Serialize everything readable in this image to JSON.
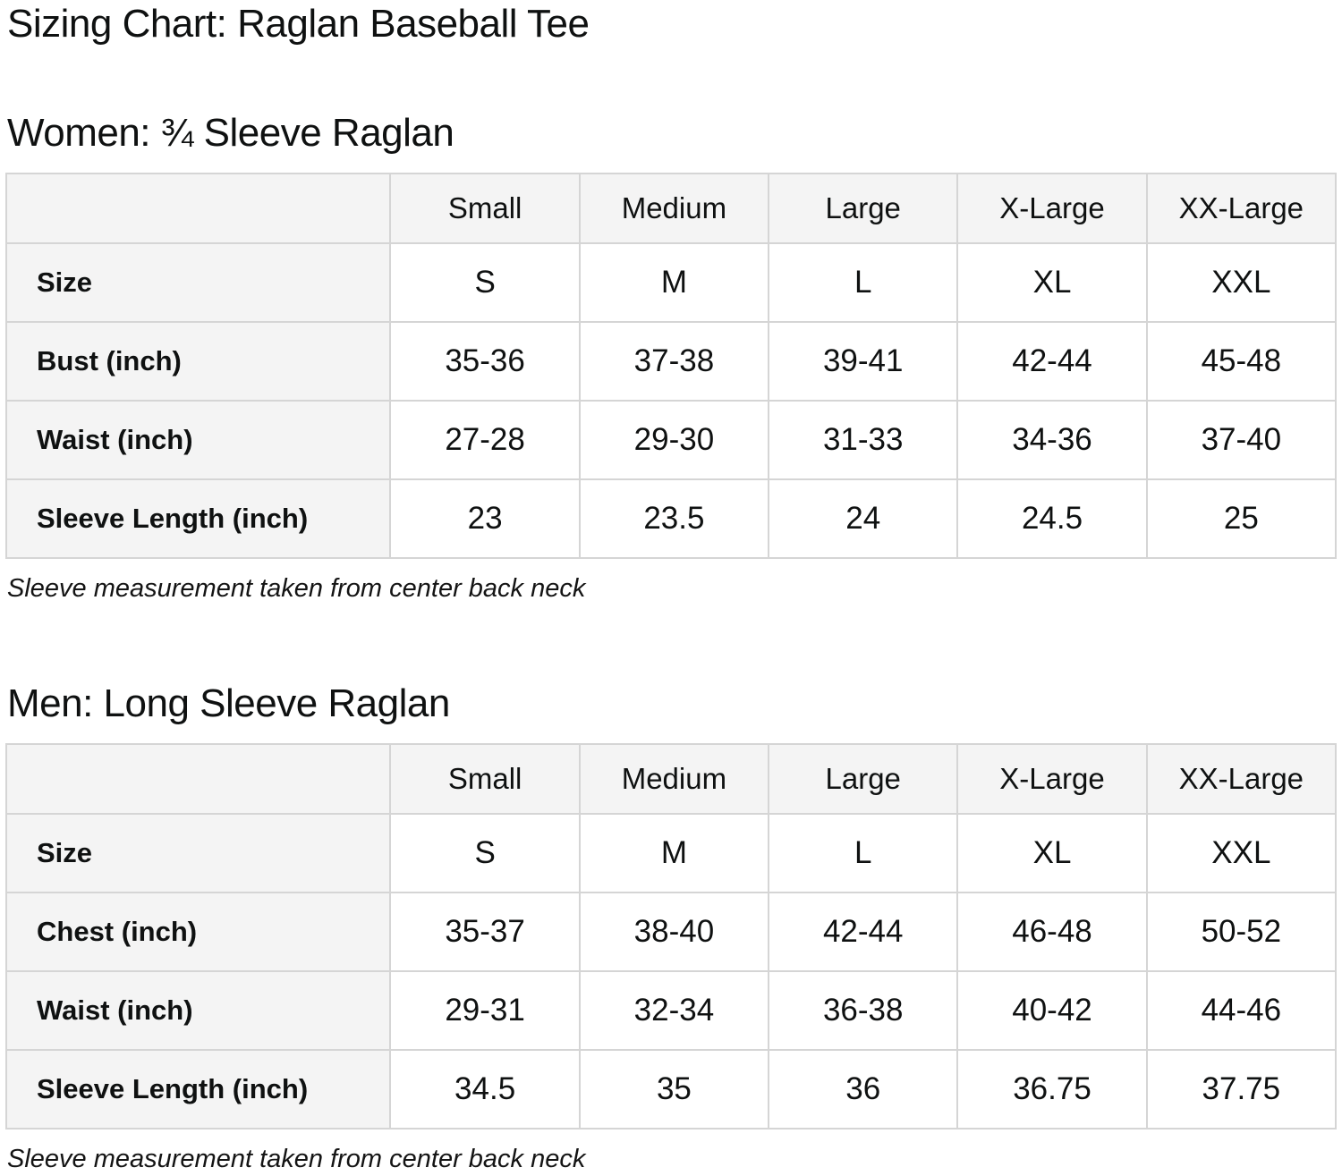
{
  "page": {
    "title": "Sizing Chart: Raglan Baseball Tee"
  },
  "colors": {
    "text": "#0f1111",
    "table_border": "#d5d5d5",
    "header_cell_bg": "#f4f4f4",
    "data_cell_bg": "#ffffff"
  },
  "tables": [
    {
      "heading": "Women: ¾ Sleeve Raglan",
      "columns": [
        "Small",
        "Medium",
        "Large",
        "X-Large",
        "XX-Large"
      ],
      "rows": [
        {
          "label": "Size",
          "values": [
            "S",
            "M",
            "L",
            "XL",
            "XXL"
          ]
        },
        {
          "label": "Bust (inch)",
          "values": [
            "35-36",
            "37-38",
            "39-41",
            "42-44",
            "45-48"
          ]
        },
        {
          "label": "Waist (inch)",
          "values": [
            "27-28",
            "29-30",
            "31-33",
            "34-36",
            "37-40"
          ]
        },
        {
          "label": "Sleeve Length (inch)",
          "values": [
            "23",
            "23.5",
            "24",
            "24.5",
            "25"
          ]
        }
      ],
      "note": "Sleeve measurement taken from center back neck"
    },
    {
      "heading": "Men: Long Sleeve Raglan",
      "columns": [
        "Small",
        "Medium",
        "Large",
        "X-Large",
        "XX-Large"
      ],
      "rows": [
        {
          "label": "Size",
          "values": [
            "S",
            "M",
            "L",
            "XL",
            "XXL"
          ]
        },
        {
          "label": "Chest (inch)",
          "values": [
            "35-37",
            "38-40",
            "42-44",
            "46-48",
            "50-52"
          ]
        },
        {
          "label": "Waist (inch)",
          "values": [
            "29-31",
            "32-34",
            "36-38",
            "40-42",
            "44-46"
          ]
        },
        {
          "label": "Sleeve Length (inch)",
          "values": [
            "34.5",
            "35",
            "36",
            "36.75",
            "37.75"
          ]
        }
      ],
      "note": "Sleeve measurement taken from center back neck"
    }
  ]
}
